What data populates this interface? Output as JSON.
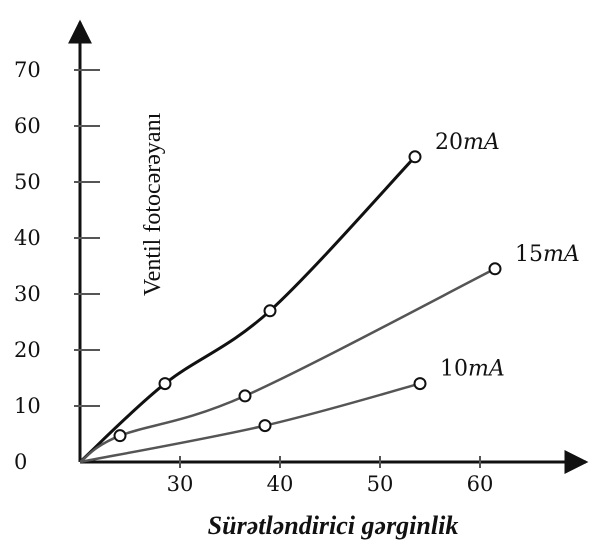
{
  "chart_data": {
    "type": "line",
    "title": "",
    "xlabel": "Sürətləndirici gərginlik",
    "ylabel": "Ventil fotocərəyanı",
    "x_ticks": [
      30,
      40,
      50,
      60
    ],
    "y_ticks": [
      0,
      10,
      20,
      30,
      40,
      50,
      60,
      70
    ],
    "xlim": [
      20,
      65
    ],
    "ylim": [
      0,
      80
    ],
    "grid": false,
    "series": [
      {
        "name_value": "20",
        "name_unit": "mA",
        "color": "#111111",
        "points": [
          {
            "x": 20,
            "y": 0
          },
          {
            "x": 28.5,
            "y": 14
          },
          {
            "x": 39,
            "y": 27
          },
          {
            "x": 53.5,
            "y": 54.5
          }
        ]
      },
      {
        "name_value": "15",
        "name_unit": "mA",
        "color": "#555555",
        "points": [
          {
            "x": 20,
            "y": 0
          },
          {
            "x": 24,
            "y": 4.7
          },
          {
            "x": 36.5,
            "y": 11.8
          },
          {
            "x": 61.5,
            "y": 34.5
          }
        ]
      },
      {
        "name_value": "10",
        "name_unit": "mA",
        "color": "#555555",
        "points": [
          {
            "x": 20,
            "y": 0
          },
          {
            "x": 38.5,
            "y": 6.5
          },
          {
            "x": 54,
            "y": 14
          }
        ]
      }
    ]
  }
}
